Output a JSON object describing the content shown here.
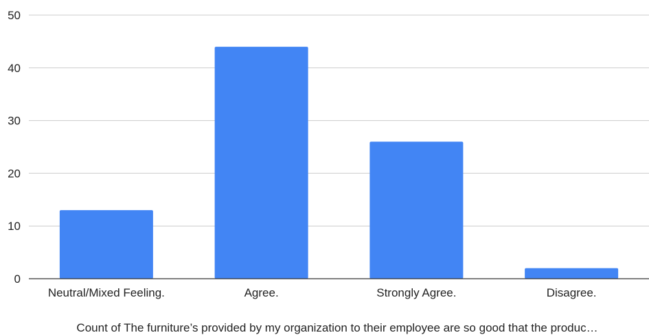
{
  "chart_data": {
    "type": "bar",
    "categories": [
      "Neutral/Mixed Feeling.",
      "Agree.",
      "Strongly Agree.",
      "Disagree."
    ],
    "values": [
      13,
      44,
      26,
      2
    ],
    "title": "",
    "xlabel": "Count of The furniture’s provided by my organization to their employee are so good that the produc…",
    "ylabel": "",
    "ylim": [
      0,
      50
    ],
    "yticks": [
      0,
      10,
      20,
      30,
      40,
      50
    ],
    "grid": true,
    "legend": "none",
    "colors": {
      "bar": "#4285F4",
      "grid": "#CCCCCC",
      "axis": "#333333",
      "text": "#222222"
    }
  }
}
